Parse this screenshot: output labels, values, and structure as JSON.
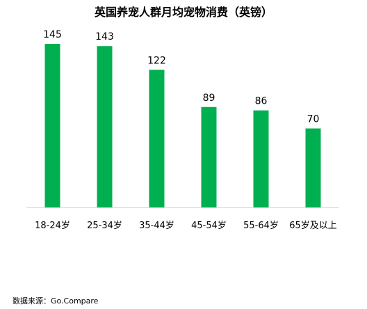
{
  "chart_data": {
    "type": "bar",
    "title": "英国养宠人群月均宠物消费（英镑）",
    "categories": [
      "18-24岁",
      "25-34岁",
      "35-44岁",
      "45-54岁",
      "55-64岁",
      "65岁及以上"
    ],
    "values": [
      145,
      143,
      122,
      89,
      86,
      70
    ],
    "xlabel": "",
    "ylabel": "",
    "ylim": [
      0,
      145
    ],
    "grid": false,
    "data_labels": true,
    "bar_color": "#00b050",
    "axis_color": "#d9d9d9"
  },
  "source": "数据来源：Go.Compare"
}
